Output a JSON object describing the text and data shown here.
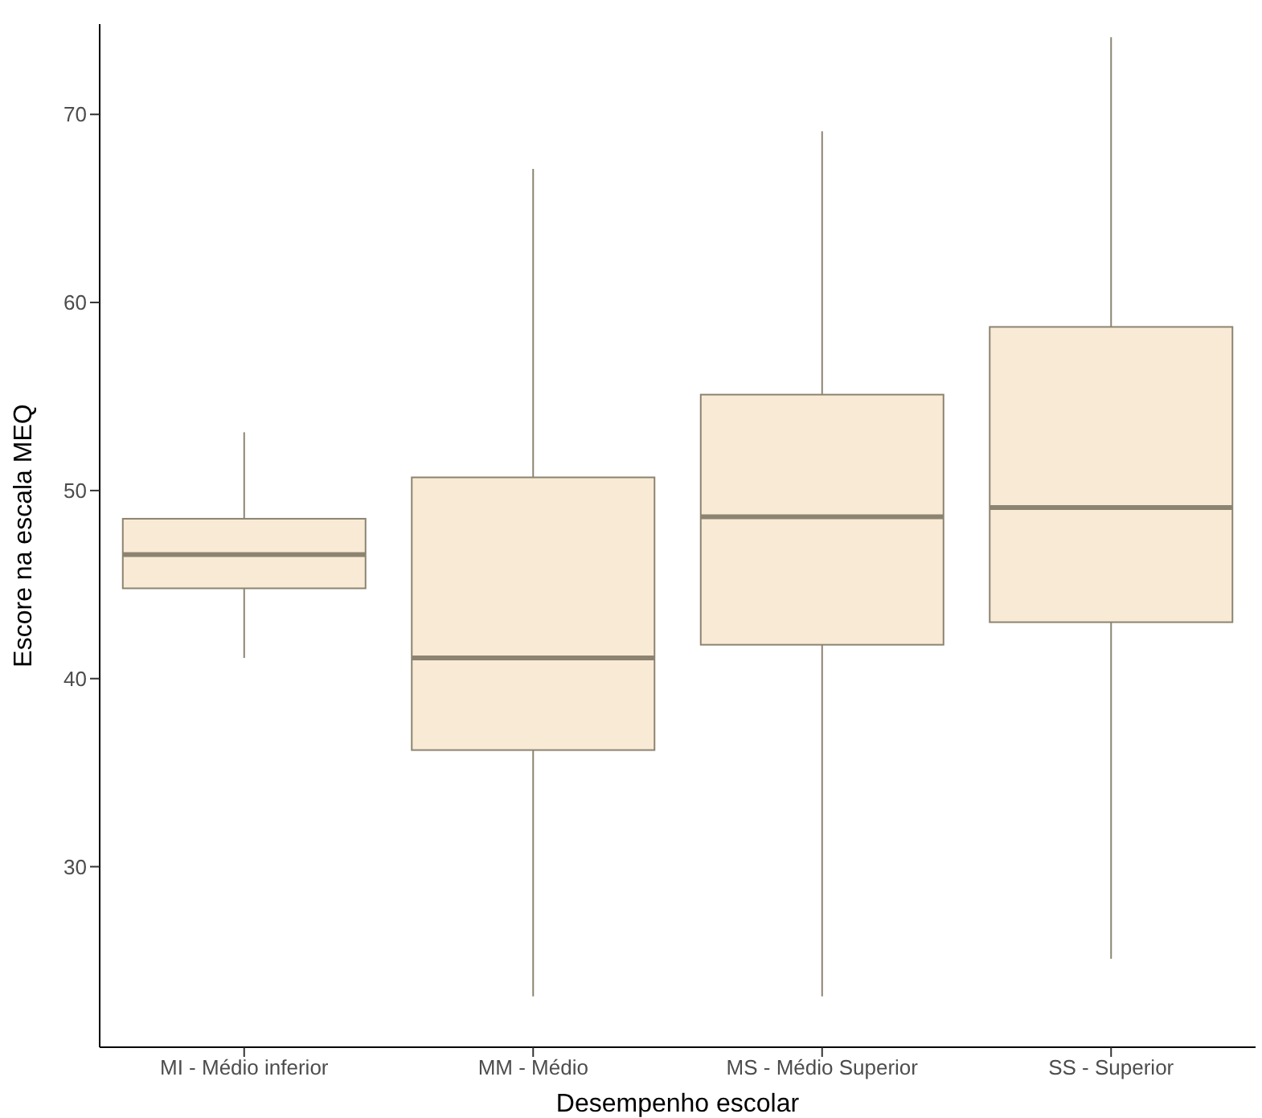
{
  "chart_data": {
    "type": "box",
    "xlabel": "Desempenho escolar",
    "ylabel": "Escore na escala MEQ",
    "categories": [
      "MI - Médio inferior",
      "MM - Médio",
      "MS - Médio Superior",
      "SS - Superior"
    ],
    "color": "#f9ead6",
    "boxes": [
      {
        "low": 41.1,
        "q1": 44.8,
        "median": 46.6,
        "q3": 48.5,
        "high": 53.1
      },
      {
        "low": 23.1,
        "q1": 36.2,
        "median": 41.1,
        "q3": 50.7,
        "high": 67.1
      },
      {
        "low": 23.1,
        "q1": 41.8,
        "median": 48.6,
        "q3": 55.1,
        "high": 69.1
      },
      {
        "low": 25.1,
        "q1": 43.0,
        "median": 49.1,
        "q3": 58.7,
        "high": 74.1
      }
    ],
    "ylim": [
      20.4,
      74.8
    ],
    "yticks": [
      30,
      40,
      50,
      60,
      70
    ],
    "grid": false,
    "legend": false
  }
}
